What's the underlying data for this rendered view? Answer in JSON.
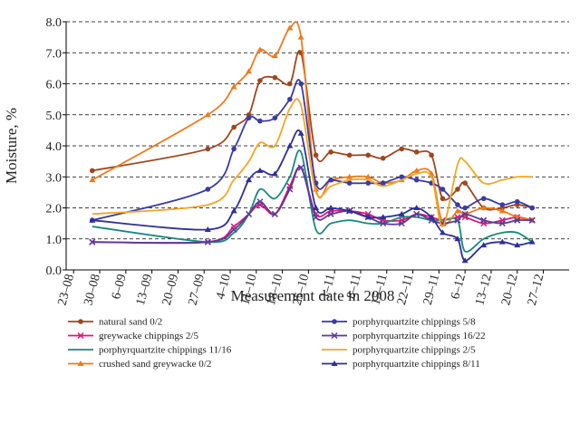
{
  "chart_data": {
    "type": "line",
    "y_label": "Moisture, %",
    "x_label": "Measurement date in 2008",
    "xlim": [
      "2008-08-21",
      "2008-12-31"
    ],
    "xticks": [
      {
        "value": "2008-08-23",
        "label": "23–08"
      },
      {
        "value": "2008-08-30",
        "label": "30–08"
      },
      {
        "value": "2008-09-06",
        "label": "6–09"
      },
      {
        "value": "2008-09-13",
        "label": "13–09"
      },
      {
        "value": "2008-09-20",
        "label": "20–09"
      },
      {
        "value": "2008-09-27",
        "label": "27–09"
      },
      {
        "value": "2008-10-04",
        "label": "4–10"
      },
      {
        "value": "2008-10-11",
        "label": "11–10"
      },
      {
        "value": "2008-10-18",
        "label": "18–10"
      },
      {
        "value": "2008-10-25",
        "label": "25–10"
      },
      {
        "value": "2008-11-01",
        "label": "1–11"
      },
      {
        "value": "2008-11-08",
        "label": "8–11"
      },
      {
        "value": "2008-11-15",
        "label": "15–11"
      },
      {
        "value": "2008-11-22",
        "label": "22–11"
      },
      {
        "value": "2008-11-29",
        "label": "29–11"
      },
      {
        "value": "2008-12-06",
        "label": "6–12"
      },
      {
        "value": "2008-12-13",
        "label": "13–12"
      },
      {
        "value": "2008-12-20",
        "label": "20–12"
      },
      {
        "value": "2008-12-27",
        "label": "27–12"
      }
    ],
    "ylim": [
      0,
      8
    ],
    "yticks": [
      {
        "value": 0,
        "label": "0.0"
      },
      {
        "value": 1,
        "label": "1.0"
      },
      {
        "value": 2,
        "label": "2.0"
      },
      {
        "value": 3,
        "label": "3.0"
      },
      {
        "value": 4,
        "label": "4.0"
      },
      {
        "value": 5,
        "label": "5.0"
      },
      {
        "value": 6,
        "label": "6.0"
      },
      {
        "value": 7,
        "label": "7.0"
      },
      {
        "value": 8,
        "label": "8.0"
      }
    ],
    "grid": true,
    "legend": "bottom",
    "x": [
      "2008-08-28",
      "2008-09-28",
      "2008-10-05",
      "2008-10-09",
      "2008-10-12",
      "2008-10-16",
      "2008-10-20",
      "2008-10-23",
      "2008-10-27",
      "2008-10-31",
      "2008-11-05",
      "2008-11-10",
      "2008-11-14",
      "2008-11-19",
      "2008-11-23",
      "2008-11-27",
      "2008-11-30",
      "2008-12-04",
      "2008-12-06",
      "2008-12-11",
      "2008-12-16",
      "2008-12-20",
      "2008-12-24"
    ],
    "series": [
      {
        "name": "natural sand 0/2",
        "color": "#a0461c",
        "marker": "circle",
        "values": [
          3.2,
          3.9,
          4.6,
          5.0,
          6.1,
          6.2,
          6.0,
          7.0,
          3.7,
          3.8,
          3.7,
          3.7,
          3.6,
          3.9,
          3.8,
          3.7,
          2.3,
          2.6,
          2.8,
          2.0,
          2.0,
          2.1,
          2.0
        ]
      },
      {
        "name": "greywacke chippings 2/5",
        "color": "#e0157c",
        "marker": "cross",
        "values": [
          0.9,
          0.9,
          1.4,
          1.8,
          2.1,
          1.8,
          2.7,
          3.3,
          1.8,
          1.9,
          1.9,
          1.8,
          1.6,
          1.6,
          1.8,
          1.7,
          1.6,
          1.7,
          1.7,
          1.5,
          1.6,
          1.7,
          1.6
        ]
      },
      {
        "name": "porphyrquartzite chippings 11/16",
        "color": "#178a7c",
        "marker": "none",
        "values": [
          1.4,
          0.9,
          1.2,
          1.8,
          2.6,
          2.3,
          3.0,
          3.8,
          1.3,
          1.5,
          1.6,
          1.5,
          1.5,
          1.7,
          1.7,
          1.6,
          1.6,
          1.6,
          0.6,
          1.0,
          1.2,
          1.2,
          0.9
        ]
      },
      {
        "name": "crushed sand greywacke 0/2",
        "color": "#f07a1c",
        "marker": "triangle",
        "values": [
          2.9,
          5.0,
          5.9,
          6.4,
          7.1,
          6.9,
          7.8,
          7.5,
          2.6,
          2.9,
          3.0,
          3.0,
          2.8,
          2.9,
          3.2,
          3.1,
          1.5,
          1.9,
          1.8,
          2.0,
          1.9,
          1.7,
          1.6
        ]
      },
      {
        "name": "porphyrquartzite chippings 5/8",
        "color": "#3a3aa8",
        "marker": "circle",
        "values": [
          1.6,
          2.6,
          3.9,
          4.9,
          4.8,
          4.9,
          5.5,
          6.0,
          2.8,
          2.9,
          2.8,
          2.8,
          2.8,
          3.0,
          2.9,
          2.8,
          2.6,
          2.1,
          2.0,
          2.3,
          2.1,
          2.2,
          2.0
        ]
      },
      {
        "name": "porphyrquartzite chippings 16/22",
        "color": "#5a3a9a",
        "marker": "cross",
        "values": [
          0.9,
          0.9,
          1.3,
          1.8,
          2.2,
          1.8,
          2.6,
          3.3,
          1.7,
          1.8,
          1.9,
          1.7,
          1.5,
          1.5,
          1.8,
          1.6,
          1.5,
          1.6,
          1.8,
          1.6,
          1.5,
          1.6,
          1.6
        ]
      },
      {
        "name": "porphyrquartzite chippings 2/5",
        "color": "#f5a623",
        "marker": "none",
        "values": [
          1.8,
          2.1,
          2.9,
          3.5,
          4.1,
          4.0,
          5.2,
          5.3,
          2.5,
          2.7,
          2.9,
          2.9,
          2.7,
          2.9,
          3.1,
          3.0,
          1.4,
          3.4,
          3.5,
          2.8,
          2.9,
          3.0,
          3.0
        ]
      },
      {
        "name": "porphyrquartzite chippings 8/11",
        "color": "#2f2f9a",
        "marker": "triangle",
        "values": [
          1.6,
          1.3,
          1.9,
          2.9,
          3.2,
          3.1,
          4.0,
          4.4,
          2.0,
          2.0,
          1.9,
          1.7,
          1.7,
          1.8,
          2.0,
          1.7,
          1.2,
          1.0,
          0.3,
          0.8,
          0.9,
          0.8,
          0.9
        ]
      }
    ]
  }
}
